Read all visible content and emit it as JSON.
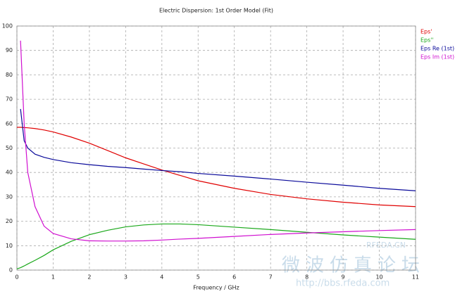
{
  "chart_data": {
    "type": "line",
    "title": "Electric Dispersion: 1st Order Model (Fit)",
    "x_label": "Frequency / GHz",
    "x": [
      0,
      0.1,
      0.2,
      0.3,
      0.5,
      0.75,
      1,
      1.5,
      2,
      2.5,
      3,
      3.5,
      4,
      4.5,
      5,
      6,
      7,
      8,
      9,
      10,
      11
    ],
    "series": [
      {
        "name": "Eps'",
        "color": "#e00000",
        "values": [
          58.5,
          58.5,
          58.4,
          58.3,
          58,
          57.4,
          56.6,
          54.5,
          52,
          49,
          46,
          43.5,
          41,
          38.8,
          36.6,
          33.5,
          31,
          29.2,
          27.8,
          26.7,
          26
        ]
      },
      {
        "name": "Eps''",
        "color": "#1aa81a",
        "values": [
          0.5,
          1,
          1.7,
          2.5,
          4,
          6,
          8.3,
          11.8,
          14.5,
          16.3,
          17.7,
          18.5,
          18.9,
          18.9,
          18.6,
          17.6,
          16.6,
          15.5,
          14.4,
          13.5,
          12.6
        ]
      },
      {
        "name": "Eps Re (1st)",
        "color": "#0a0a9a",
        "values": [
          null,
          66,
          53,
          50,
          47.5,
          46.2,
          45.3,
          44,
          43.2,
          42.5,
          42,
          41.4,
          40.8,
          40.3,
          39.6,
          38.5,
          37.3,
          36,
          34.8,
          33.5,
          32.5
        ]
      },
      {
        "name": "Eps Im (1st)",
        "color": "#d010d0",
        "values": [
          null,
          94,
          60,
          40,
          26,
          18,
          15,
          12.8,
          12,
          11.9,
          11.9,
          12,
          12.3,
          12.7,
          13,
          13.8,
          14.6,
          15.2,
          15.7,
          16.2,
          16.6
        ]
      }
    ],
    "xlim": [
      0,
      11
    ],
    "xticks": [
      0,
      1,
      2,
      3,
      4,
      5,
      6,
      7,
      8,
      9,
      10,
      11
    ],
    "ylim": [
      0,
      100
    ],
    "yticks": [
      0,
      10,
      20,
      30,
      40,
      50,
      60,
      70,
      80,
      90,
      100
    ],
    "grid": true,
    "legend": "top-right",
    "watermark": [
      "RFEDA.CN",
      "微波仿真论坛",
      "http://bbs.rfeda.com"
    ]
  }
}
